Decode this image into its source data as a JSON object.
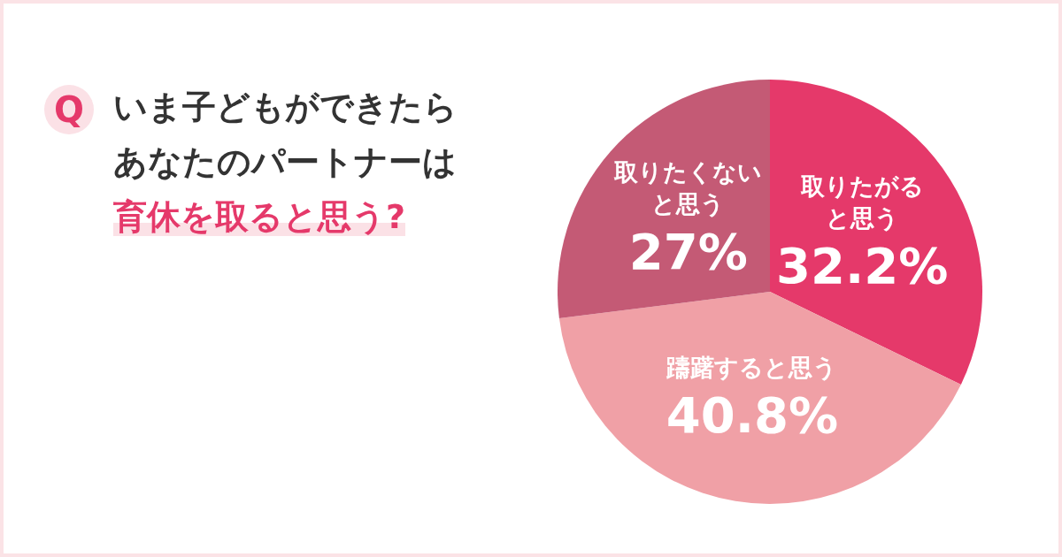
{
  "chart_data": {
    "type": "pie",
    "title": "いま子どもができたらあなたのパートナーは",
    "subtitle": "育休を取ると思う?",
    "annotations": [
      "Q"
    ],
    "categories": [
      "取りたがると思う",
      "躊躇すると思う",
      "取りたくないと思う"
    ],
    "values": [
      32.2,
      40.8,
      27
    ],
    "colors": [
      "#e5396a",
      "#f0a0a6",
      "#c45a75"
    ],
    "value_labels": [
      "32.2%",
      "40.8%",
      "27%"
    ],
    "legend": false
  }
}
